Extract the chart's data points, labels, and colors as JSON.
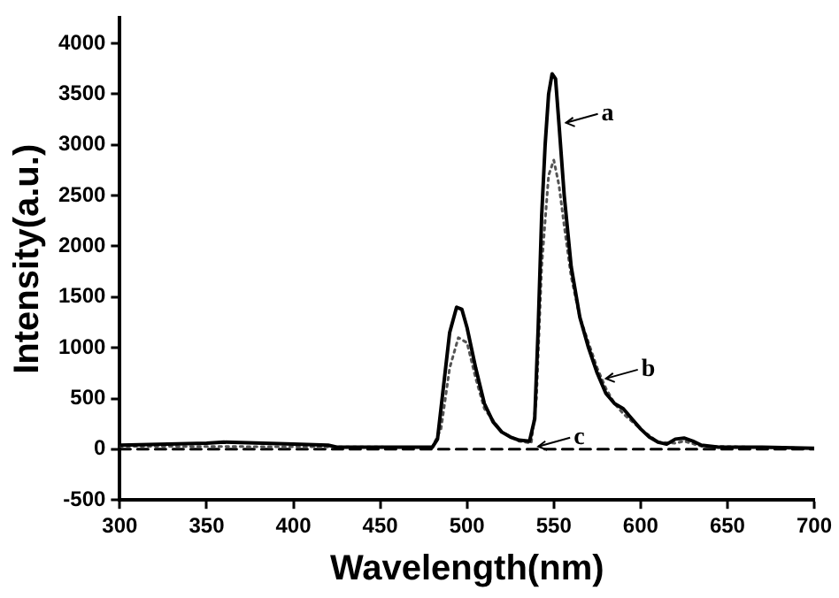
{
  "chart_data": {
    "type": "line",
    "xlabel": "Wavelength(nm)",
    "ylabel": "Intensity(a.u.)",
    "xlim": [
      300,
      700
    ],
    "xticks": [
      300,
      350,
      400,
      450,
      500,
      550,
      600,
      650,
      700
    ],
    "ylim": [
      -500,
      4250
    ],
    "yticks": [
      -500,
      0,
      500,
      1000,
      1500,
      2000,
      2500,
      3000,
      3500,
      4000
    ],
    "grid": false,
    "legend": false,
    "marker": "none",
    "series": [
      {
        "color": "#000000",
        "line_style": "solid",
        "x": [
          300,
          350,
          360,
          400,
          420,
          425,
          480,
          483,
          487,
          490,
          494,
          497,
          500,
          505,
          510,
          515,
          520,
          525,
          530,
          536,
          539,
          541,
          543,
          545,
          547,
          549,
          551,
          553,
          556,
          560,
          565,
          570,
          575,
          580,
          585,
          590,
          595,
          600,
          605,
          610,
          615,
          620,
          625,
          630,
          635,
          645,
          670,
          700
        ],
        "values": [
          40,
          60,
          70,
          50,
          40,
          20,
          20,
          100,
          700,
          1150,
          1400,
          1380,
          1200,
          800,
          450,
          270,
          170,
          120,
          90,
          80,
          300,
          1200,
          2300,
          3000,
          3500,
          3700,
          3650,
          3200,
          2500,
          1800,
          1300,
          1000,
          750,
          550,
          450,
          400,
          300,
          200,
          120,
          70,
          50,
          100,
          110,
          80,
          40,
          20,
          20,
          10
        ]
      },
      {
        "color": "#555555",
        "line_style": "dotted",
        "x": [
          300,
          480,
          485,
          490,
          495,
          500,
          505,
          510,
          520,
          530,
          537,
          540,
          543,
          547,
          550,
          553,
          556,
          560,
          565,
          570,
          575,
          580,
          585,
          590,
          600,
          610,
          620,
          625,
          635,
          700
        ],
        "values": [
          30,
          20,
          200,
          800,
          1100,
          1050,
          700,
          400,
          170,
          80,
          60,
          500,
          1800,
          2700,
          2850,
          2600,
          2200,
          1700,
          1300,
          1050,
          800,
          600,
          450,
          350,
          200,
          70,
          60,
          80,
          30,
          10
        ]
      },
      {
        "color": "#000000",
        "line_style": "dashed",
        "x": [
          300,
          700
        ],
        "values": [
          0,
          0
        ]
      }
    ],
    "annotations": [
      {
        "text": "a",
        "x": 555,
        "y": 3200
      },
      {
        "text": "b",
        "x": 578,
        "y": 680
      },
      {
        "text": "c",
        "x": 539,
        "y": 10
      }
    ]
  }
}
